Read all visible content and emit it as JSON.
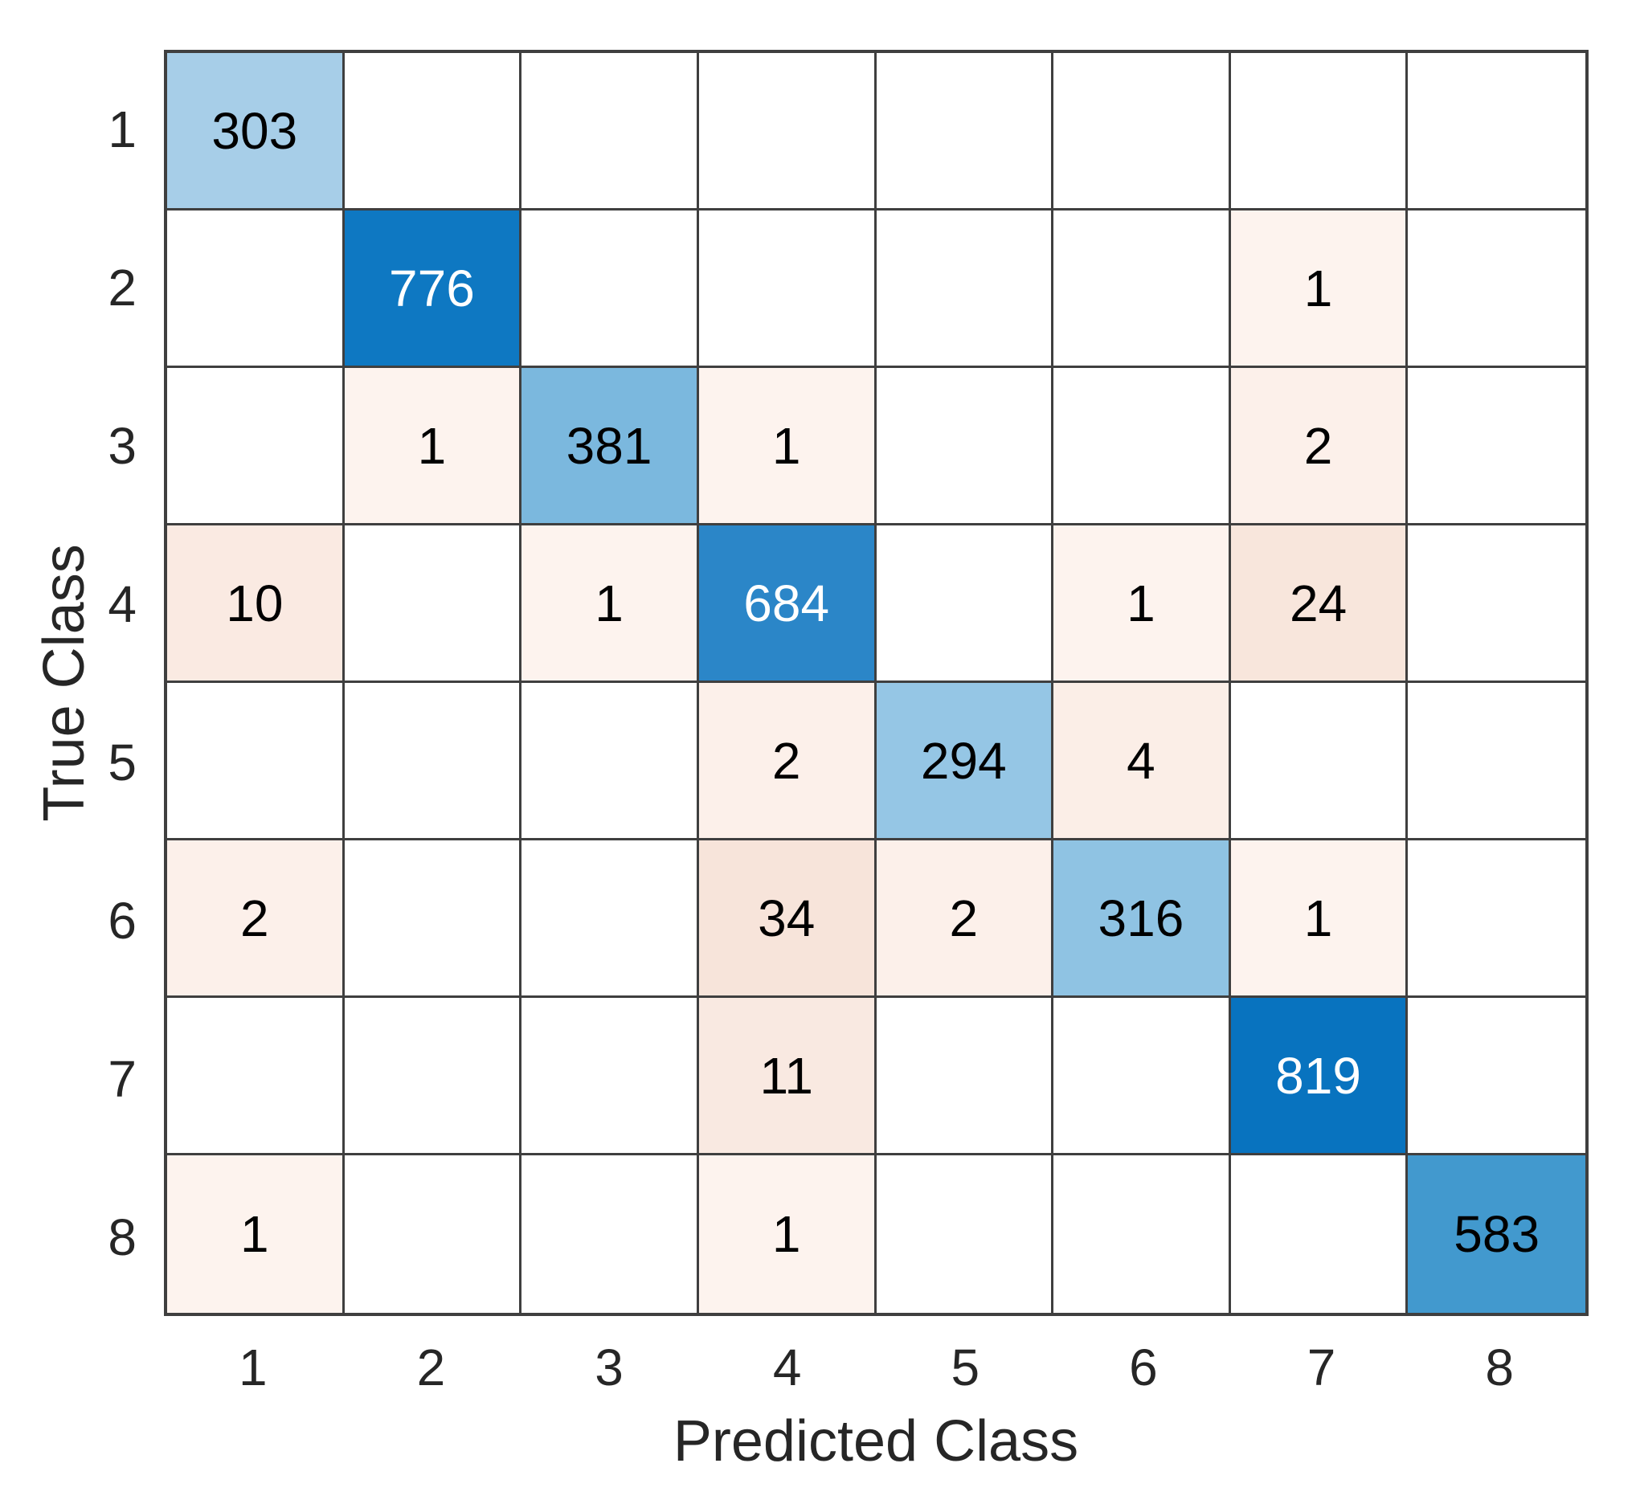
{
  "chart_data": {
    "type": "heatmap",
    "title": "",
    "xlabel": "Predicted Class",
    "ylabel": "True Class",
    "x_tick_labels": [
      "1",
      "2",
      "3",
      "4",
      "5",
      "6",
      "7",
      "8"
    ],
    "y_tick_labels": [
      "1",
      "2",
      "3",
      "4",
      "5",
      "6",
      "7",
      "8"
    ],
    "zero_cells_blank": true,
    "matrix": [
      [
        303,
        0,
        0,
        0,
        0,
        0,
        0,
        0
      ],
      [
        0,
        776,
        0,
        0,
        0,
        0,
        1,
        0
      ],
      [
        0,
        1,
        381,
        1,
        0,
        0,
        2,
        0
      ],
      [
        10,
        0,
        1,
        684,
        0,
        1,
        24,
        0
      ],
      [
        0,
        0,
        0,
        2,
        294,
        4,
        0,
        0
      ],
      [
        2,
        0,
        0,
        34,
        2,
        316,
        1,
        0
      ],
      [
        0,
        0,
        0,
        11,
        0,
        0,
        819,
        0
      ],
      [
        1,
        0,
        0,
        1,
        0,
        0,
        0,
        583
      ]
    ],
    "diagonal_cell_colors": {
      "303": "#a7cee8",
      "776": "#0e78c2",
      "381": "#7bb8de",
      "684": "#2b86c8",
      "294": "#95c6e5",
      "316": "#8fc3e3",
      "819": "#0873bf",
      "583": "#4299ce"
    },
    "offdiagonal_cell_colors": {
      "1": "#fdf3ee",
      "2": "#fcf0ea",
      "4": "#fbeee7",
      "10": "#faeae2",
      "11": "#f9e9e1",
      "24": "#f8e6dc",
      "34": "#f7e4da"
    },
    "white_text_values": [
      776,
      684,
      819
    ],
    "colors": {
      "background": "#ffffff",
      "empty_cell": "#ffffff",
      "grid_line": "#3f3f3f",
      "axis_text": "#262626",
      "cell_text_dark": "#000000",
      "cell_text_light": "#ffffff",
      "diagonal_base": "#0072bd",
      "offdiagonal_base": "#d95319"
    }
  }
}
